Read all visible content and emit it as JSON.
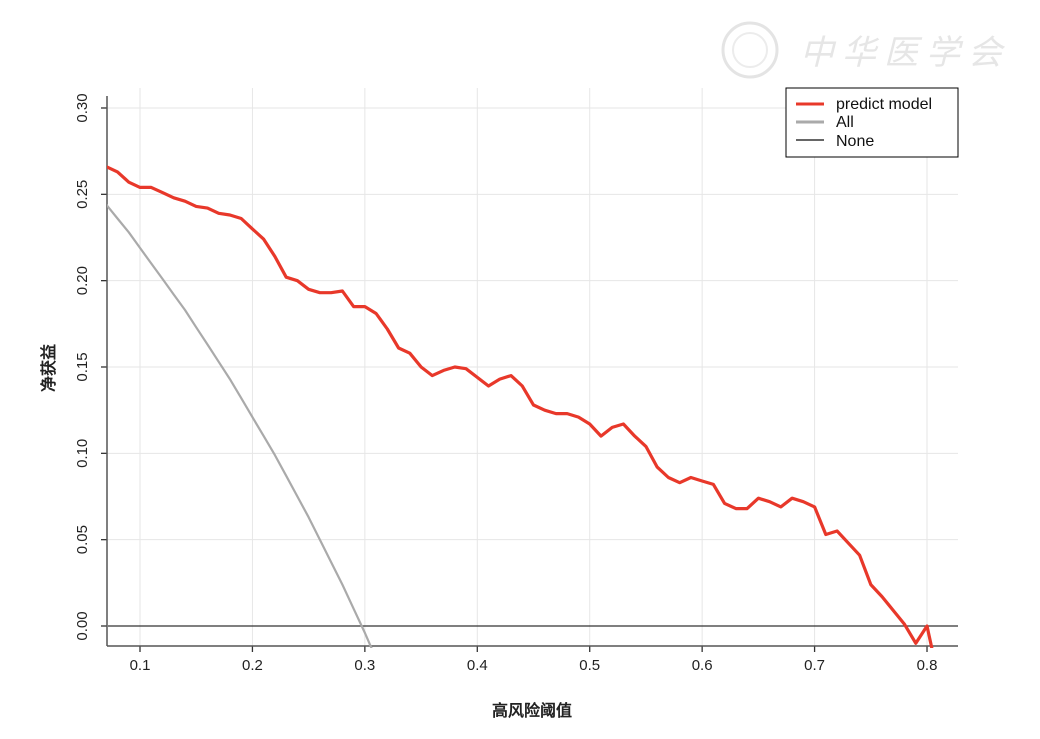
{
  "watermark": {
    "text": "中华医学会"
  },
  "chart_data": {
    "type": "line",
    "title": "",
    "xlabel": "高风险阈值",
    "ylabel": "净获益",
    "xlim": [
      0.0715,
      0.829
    ],
    "ylim": [
      -0.0127,
      0.312
    ],
    "xticks": [
      "0.1",
      "0.2",
      "0.3",
      "0.4",
      "0.5",
      "0.6",
      "0.7",
      "0.8"
    ],
    "yticks": [
      "0.00",
      "0.05",
      "0.10",
      "0.15",
      "0.20",
      "0.25",
      "0.30"
    ],
    "grid": true,
    "legend_position": "top-right",
    "colors": {
      "predict": "#e8382a",
      "all": "#aaaaaa",
      "none": "#333333"
    },
    "series": [
      {
        "name": "predict model",
        "x": [
          0.07,
          0.08,
          0.09,
          0.1,
          0.11,
          0.12,
          0.13,
          0.14,
          0.15,
          0.16,
          0.17,
          0.18,
          0.19,
          0.2,
          0.21,
          0.22,
          0.23,
          0.24,
          0.25,
          0.26,
          0.27,
          0.28,
          0.29,
          0.3,
          0.31,
          0.32,
          0.33,
          0.34,
          0.35,
          0.36,
          0.37,
          0.38,
          0.39,
          0.4,
          0.41,
          0.42,
          0.43,
          0.44,
          0.45,
          0.46,
          0.47,
          0.48,
          0.49,
          0.5,
          0.51,
          0.52,
          0.53,
          0.54,
          0.55,
          0.56,
          0.57,
          0.58,
          0.59,
          0.6,
          0.61,
          0.62,
          0.63,
          0.64,
          0.65,
          0.66,
          0.67,
          0.68,
          0.69,
          0.7,
          0.71,
          0.72,
          0.73,
          0.74,
          0.75,
          0.76,
          0.77,
          0.78,
          0.79,
          0.8,
          0.81
        ],
        "y": [
          0.266,
          0.263,
          0.257,
          0.254,
          0.254,
          0.251,
          0.248,
          0.246,
          0.243,
          0.242,
          0.239,
          0.238,
          0.236,
          0.23,
          0.224,
          0.214,
          0.202,
          0.2,
          0.195,
          0.193,
          0.193,
          0.194,
          0.185,
          0.185,
          0.181,
          0.172,
          0.161,
          0.158,
          0.15,
          0.145,
          0.148,
          0.15,
          0.149,
          0.144,
          0.139,
          0.143,
          0.145,
          0.139,
          0.128,
          0.125,
          0.123,
          0.123,
          0.121,
          0.117,
          0.11,
          0.115,
          0.117,
          0.11,
          0.104,
          0.092,
          0.086,
          0.083,
          0.086,
          0.084,
          0.082,
          0.071,
          0.068,
          0.068,
          0.074,
          0.072,
          0.069,
          0.074,
          0.072,
          0.069,
          0.053,
          0.055,
          0.048,
          0.041,
          0.024,
          0.017,
          0.009,
          0.001,
          -0.01,
          0.0,
          -0.03
        ]
      },
      {
        "name": "All",
        "x": [
          0.07,
          0.08,
          0.09,
          0.1,
          0.11,
          0.12,
          0.13,
          0.14,
          0.15,
          0.16,
          0.17,
          0.18,
          0.19,
          0.2,
          0.21,
          0.22,
          0.23,
          0.24,
          0.25,
          0.26,
          0.27,
          0.28,
          0.29,
          0.3,
          0.31
        ],
        "y": [
          0.244,
          0.236,
          0.228,
          0.219,
          0.21,
          0.201,
          0.192,
          0.183,
          0.173,
          0.163,
          0.153,
          0.143,
          0.132,
          0.121,
          0.11,
          0.099,
          0.087,
          0.075,
          0.063,
          0.05,
          0.037,
          0.024,
          0.01,
          -0.004,
          -0.019
        ]
      },
      {
        "name": "None",
        "x": [
          0.0715,
          0.829
        ],
        "y": [
          0,
          0
        ]
      }
    ]
  }
}
